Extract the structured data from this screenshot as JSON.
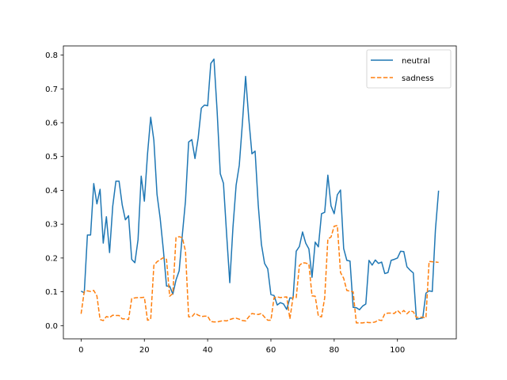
{
  "chart_data": {
    "type": "line",
    "title": "",
    "xlabel": "",
    "ylabel": "",
    "xlim": [
      -5.6,
      118.6
    ],
    "ylim": [
      -0.039,
      0.827
    ],
    "xticks": [
      0,
      20,
      40,
      60,
      80,
      100
    ],
    "yticks": [
      0.0,
      0.1,
      0.2,
      0.3,
      0.4,
      0.5,
      0.6,
      0.7,
      0.8
    ],
    "ytick_labels": [
      "0.0",
      "0.1",
      "0.2",
      "0.3",
      "0.4",
      "0.5",
      "0.6",
      "0.7",
      "0.8"
    ],
    "grid": false,
    "legend_position": "top-right",
    "series": [
      {
        "name": "neutral",
        "color": "#1f77b4",
        "style": "solid",
        "values": [
          0.102,
          0.097,
          0.268,
          0.268,
          0.42,
          0.36,
          0.403,
          0.244,
          0.322,
          0.216,
          0.353,
          0.427,
          0.427,
          0.357,
          0.313,
          0.325,
          0.196,
          0.186,
          0.254,
          0.442,
          0.368,
          0.508,
          0.616,
          0.548,
          0.388,
          0.317,
          0.224,
          0.117,
          0.117,
          0.093,
          0.135,
          0.162,
          0.268,
          0.369,
          0.543,
          0.55,
          0.494,
          0.554,
          0.643,
          0.652,
          0.65,
          0.775,
          0.788,
          0.634,
          0.449,
          0.421,
          0.27,
          0.127,
          0.29,
          0.415,
          0.474,
          0.6,
          0.737,
          0.613,
          0.508,
          0.516,
          0.356,
          0.24,
          0.184,
          0.168,
          0.092,
          0.089,
          0.061,
          0.068,
          0.064,
          0.048,
          0.082,
          0.081,
          0.22,
          0.234,
          0.277,
          0.244,
          0.227,
          0.143,
          0.247,
          0.233,
          0.331,
          0.335,
          0.445,
          0.354,
          0.331,
          0.387,
          0.401,
          0.228,
          0.193,
          0.191,
          0.054,
          0.053,
          0.047,
          0.058,
          0.064,
          0.193,
          0.179,
          0.194,
          0.184,
          0.188,
          0.154,
          0.157,
          0.193,
          0.196,
          0.2,
          0.22,
          0.219,
          0.174,
          0.164,
          0.156,
          0.019,
          0.021,
          0.023,
          0.096,
          0.103,
          0.101,
          0.283,
          0.399
        ]
      },
      {
        "name": "sadness",
        "color": "#ff7f0e",
        "style": "dashed",
        "values": [
          0.035,
          0.101,
          0.103,
          0.101,
          0.104,
          0.088,
          0.018,
          0.015,
          0.027,
          0.024,
          0.031,
          0.03,
          0.03,
          0.02,
          0.02,
          0.018,
          0.08,
          0.082,
          0.083,
          0.083,
          0.084,
          0.016,
          0.019,
          0.178,
          0.189,
          0.195,
          0.201,
          0.196,
          0.087,
          0.095,
          0.26,
          0.263,
          0.26,
          0.22,
          0.026,
          0.026,
          0.037,
          0.031,
          0.027,
          0.028,
          0.028,
          0.012,
          0.011,
          0.011,
          0.013,
          0.015,
          0.014,
          0.018,
          0.021,
          0.022,
          0.019,
          0.015,
          0.014,
          0.026,
          0.036,
          0.034,
          0.033,
          0.036,
          0.025,
          0.016,
          0.016,
          0.083,
          0.085,
          0.083,
          0.084,
          0.085,
          0.02,
          0.085,
          0.083,
          0.178,
          0.186,
          0.185,
          0.182,
          0.088,
          0.087,
          0.028,
          0.026,
          0.082,
          0.256,
          0.262,
          0.294,
          0.296,
          0.157,
          0.14,
          0.104,
          0.102,
          0.1,
          0.008,
          0.008,
          0.008,
          0.01,
          0.009,
          0.009,
          0.011,
          0.017,
          0.015,
          0.035,
          0.037,
          0.037,
          0.036,
          0.045,
          0.036,
          0.045,
          0.035,
          0.044,
          0.041,
          0.024,
          0.025,
          0.025,
          0.023,
          0.19,
          0.189,
          0.188,
          0.187
        ]
      }
    ]
  }
}
